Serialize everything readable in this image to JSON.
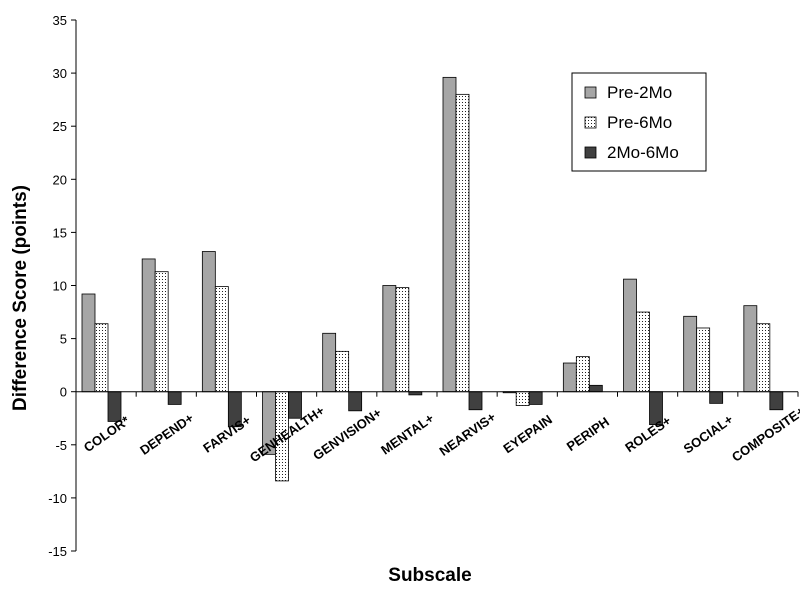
{
  "chart_data": {
    "type": "bar",
    "title": "",
    "xlabel": "Subscale",
    "ylabel": "Difference Score (points)",
    "ylim": [
      -15,
      35
    ],
    "yticks": [
      -15,
      -10,
      -5,
      0,
      5,
      10,
      15,
      20,
      25,
      30,
      35
    ],
    "grid": false,
    "legend_position": "top-right",
    "categories": [
      "COLOR*",
      "DEPEND+",
      "FARVIS+",
      "GENHEALTH+",
      "GENVISION+",
      "MENTAL+",
      "NEARVIS+",
      "EYEPAIN",
      "PERIPH",
      "ROLES+",
      "SOCIAL+",
      "COMPOSITE+"
    ],
    "series": [
      {
        "name": "Pre-2Mo",
        "color": "#a6a6a6",
        "pattern": "solid",
        "values": [
          9.2,
          12.5,
          13.2,
          -5.9,
          5.5,
          10.0,
          29.6,
          -0.1,
          2.7,
          10.6,
          7.1,
          8.1
        ]
      },
      {
        "name": "Pre-6Mo",
        "color": "#ffffff",
        "pattern": "dots",
        "values": [
          6.4,
          11.3,
          9.9,
          -8.4,
          3.8,
          9.8,
          28.0,
          -1.3,
          3.3,
          7.5,
          6.0,
          6.4
        ]
      },
      {
        "name": "2Mo-6Mo",
        "color": "#404040",
        "pattern": "solid",
        "values": [
          -2.8,
          -1.2,
          -3.3,
          -2.5,
          -1.8,
          -0.3,
          -1.7,
          -1.2,
          0.6,
          -3.1,
          -1.1,
          -1.7
        ]
      }
    ]
  }
}
